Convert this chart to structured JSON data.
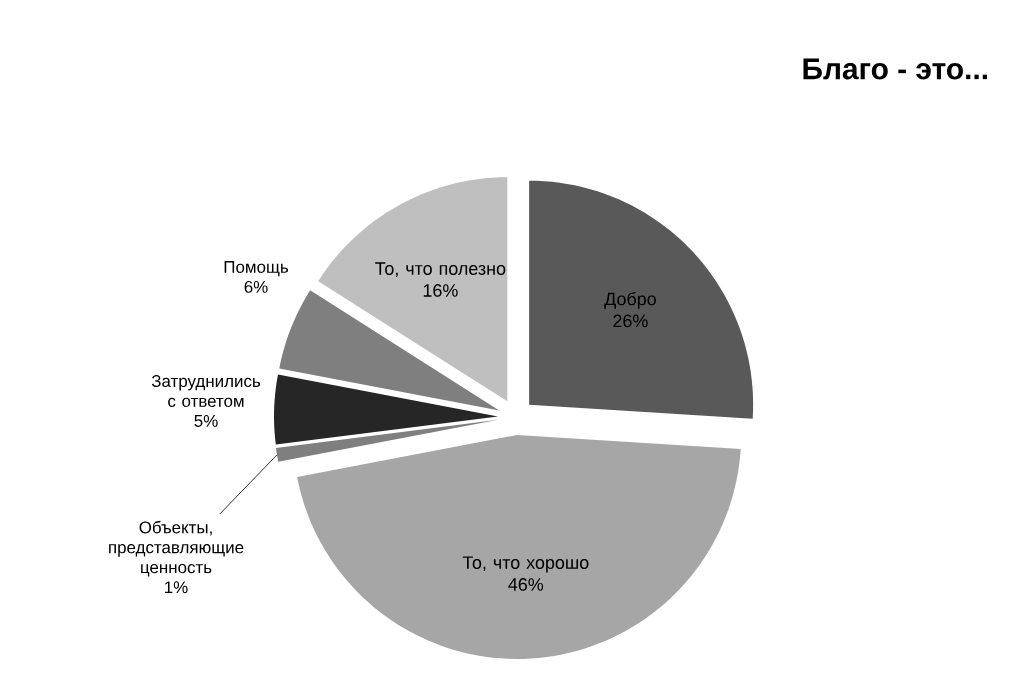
{
  "chart_data": {
    "type": "pie",
    "title": "Благо - это...",
    "categories": [
      "Добро",
      "То, что хорошо",
      "Объекты, представляющие ценность",
      "Затруднились с ответом",
      "Помощь",
      "То, что полезно"
    ],
    "values": [
      26,
      46,
      1,
      5,
      6,
      16
    ],
    "value_labels": [
      "26%",
      "46%",
      "1%",
      "5%",
      "6%",
      "16%"
    ],
    "colors": [
      "#595959",
      "#a6a6a6",
      "#7f7f7f",
      "#262626",
      "#7f7f7f",
      "#bfbfbf"
    ]
  }
}
